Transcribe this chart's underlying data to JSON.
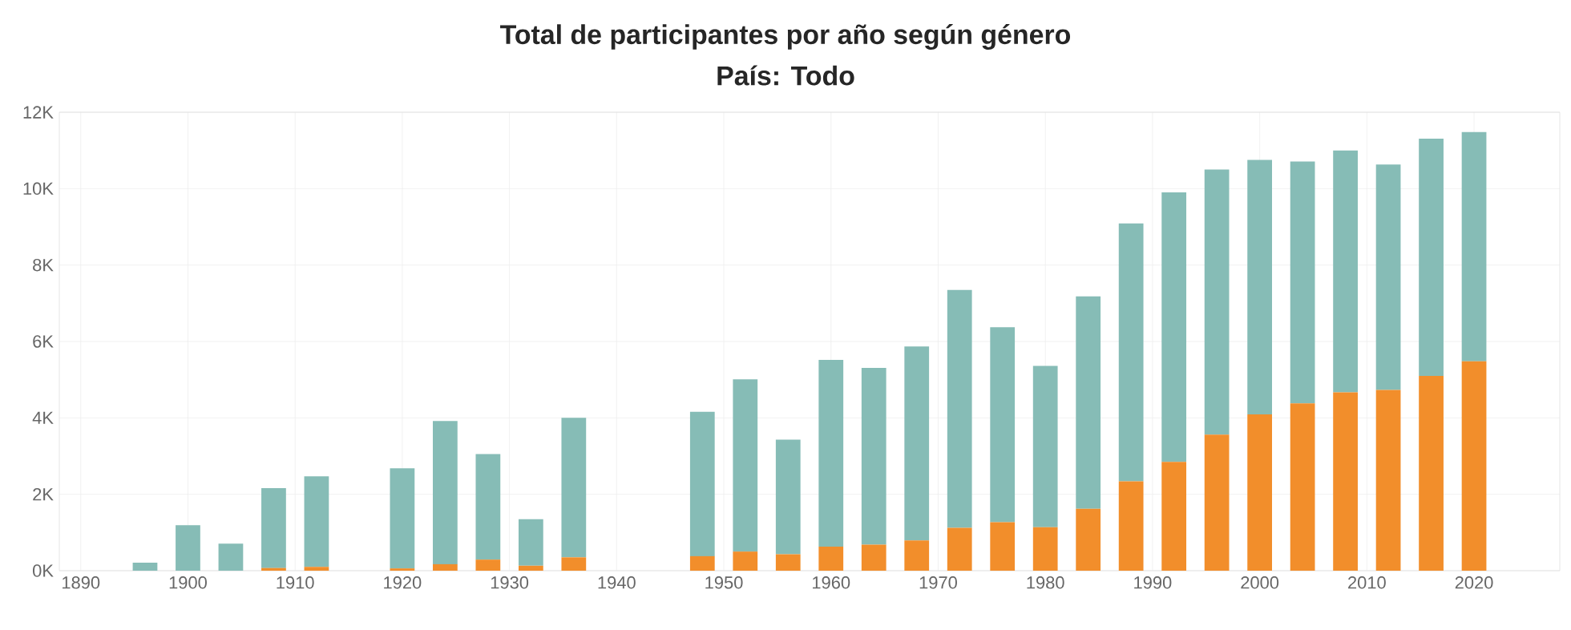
{
  "chart_data": {
    "type": "bar",
    "stacked": true,
    "title": "Total de participantes por año según género",
    "subtitle": "País: Todo",
    "x": [
      1896,
      1900,
      1904,
      1908,
      1912,
      1920,
      1924,
      1928,
      1932,
      1936,
      1948,
      1952,
      1956,
      1960,
      1964,
      1968,
      1972,
      1976,
      1980,
      1984,
      1988,
      1992,
      1996,
      2000,
      2004,
      2008,
      2012,
      2016,
      2020
    ],
    "series": [
      {
        "color": "#f28e2b",
        "values": [
          0,
          0,
          0,
          70,
          100,
          60,
          170,
          290,
          130,
          350,
          380,
          500,
          430,
          630,
          680,
          790,
          1120,
          1270,
          1140,
          1620,
          2340,
          2850,
          3560,
          4090,
          4380,
          4670,
          4730,
          5100,
          5480
        ]
      },
      {
        "color": "#86bcb6",
        "values": [
          210,
          1190,
          710,
          2090,
          2370,
          2620,
          3750,
          2760,
          1220,
          3650,
          3780,
          4510,
          3000,
          4890,
          4630,
          5080,
          6230,
          5100,
          4220,
          5560,
          6750,
          7050,
          6940,
          6660,
          6330,
          6330,
          5900,
          6210,
          6000
        ]
      }
    ],
    "xlim": [
      1888,
      2028
    ],
    "ylim": [
      0,
      12000
    ],
    "xticks": [
      1890,
      1900,
      1910,
      1920,
      1930,
      1940,
      1950,
      1960,
      1970,
      1980,
      1990,
      2000,
      2010,
      2020
    ],
    "yticks": [
      {
        "value": 0,
        "label": "0K"
      },
      {
        "value": 2000,
        "label": "2K"
      },
      {
        "value": 4000,
        "label": "4K"
      },
      {
        "value": 6000,
        "label": "6K"
      },
      {
        "value": 8000,
        "label": "8K"
      },
      {
        "value": 10000,
        "label": "10K"
      },
      {
        "value": 12000,
        "label": "12K"
      }
    ],
    "grid": true
  }
}
